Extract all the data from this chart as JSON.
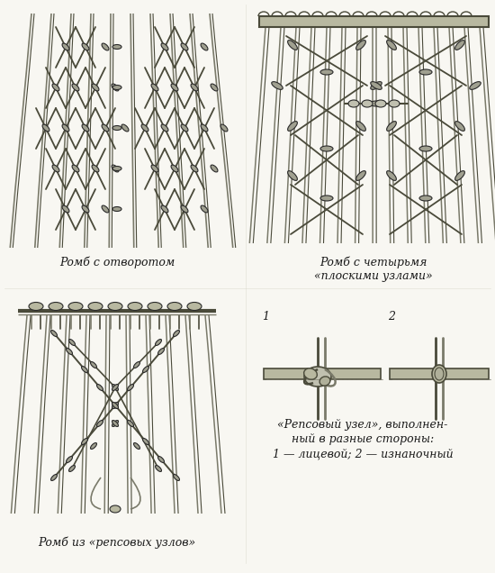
{
  "background_color": "#f8f7f2",
  "labels": {
    "top_left": "Ромб с отворотом",
    "top_right_line1": "Ромб с четырьмя",
    "top_right_line2": "«плоскими узлами»",
    "bottom_left": "Ромб из «репсовых узлов»",
    "bottom_right_line1": "«Репсовый узел», выполнен-",
    "bottom_right_line2": "ный в разные стороны:",
    "bottom_right_line3": "1 — лицевой; 2 — изнаночный",
    "label1": "1",
    "label2": "2"
  },
  "text_color": "#1a1a1a",
  "rope_dark": "#4a4a3a",
  "rope_mid": "#7a7a6a",
  "rope_light": "#b0b09a",
  "knot_fill": "#a0a090",
  "bar_fill": "#b8b8a0",
  "font_size_caption": 9,
  "font_size_num": 9
}
